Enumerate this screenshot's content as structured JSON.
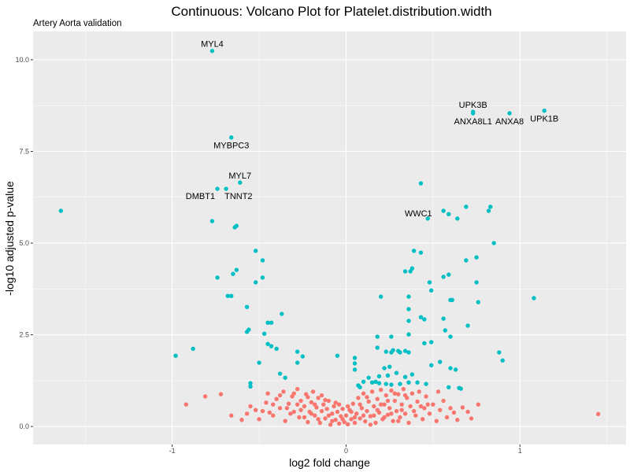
{
  "chart_data": {
    "type": "scatter",
    "title": "Continuous: Volcano Plot for Platelet.distribution.width",
    "subtitle": "Artery Aorta validation",
    "xlabel": "log2 fold change",
    "ylabel": "-log10 adjusted p-value",
    "xlim": [
      -1.8,
      1.61
    ],
    "ylim": [
      -0.49,
      10.77
    ],
    "x_ticks": [
      -1,
      0,
      1
    ],
    "x_tick_labels": [
      "-1",
      "0",
      "1"
    ],
    "y_ticks": [
      0,
      2.5,
      5,
      7.5,
      10
    ],
    "y_tick_labels": [
      "0.0",
      "2.5",
      "5.0",
      "7.5",
      "10.0"
    ],
    "grid": true,
    "colors": {
      "significant": "#00BFC4",
      "not_significant": "#F8766D",
      "panel": "#EBEBEB"
    },
    "labeled_points": [
      {
        "label": "MYL4",
        "x": -0.77,
        "y": 10.24,
        "label_pos": "above"
      },
      {
        "label": "MYBPC3",
        "x": -0.66,
        "y": 7.88,
        "label_pos": "below"
      },
      {
        "label": "MYL7",
        "x": -0.61,
        "y": 6.65,
        "label_pos": "above"
      },
      {
        "label": "DMBT1",
        "x": -0.74,
        "y": 6.48,
        "label_pos": "below-left"
      },
      {
        "label": "TNNT2",
        "x": -0.69,
        "y": 6.48,
        "label_pos": "below-right"
      },
      {
        "label": "UPK3B",
        "x": 0.73,
        "y": 8.58,
        "label_pos": "above"
      },
      {
        "label": "ANXA8L1",
        "x": 0.73,
        "y": 8.54,
        "label_pos": "below"
      },
      {
        "label": "ANXA8",
        "x": 0.94,
        "y": 8.54,
        "label_pos": "below"
      },
      {
        "label": "UPK1B",
        "x": 1.14,
        "y": 8.61,
        "label_pos": "below"
      },
      {
        "label": "WWC1",
        "x": 0.47,
        "y": 5.67,
        "label_pos": "left"
      }
    ],
    "significant_points": [
      [
        -1.64,
        5.88
      ],
      [
        -0.77,
        5.6
      ],
      [
        -0.63,
        5.47
      ],
      [
        -0.64,
        5.43
      ],
      [
        -0.52,
        4.79
      ],
      [
        -0.48,
        4.53
      ],
      [
        -0.63,
        4.27
      ],
      [
        -0.65,
        4.16
      ],
      [
        -0.74,
        4.06
      ],
      [
        -0.48,
        4.06
      ],
      [
        -0.52,
        3.93
      ],
      [
        -0.68,
        3.56
      ],
      [
        -0.66,
        3.56
      ],
      [
        -0.57,
        3.26
      ],
      [
        -0.37,
        3.07
      ],
      [
        -0.45,
        2.83
      ],
      [
        -0.43,
        2.83
      ],
      [
        -0.56,
        2.64
      ],
      [
        -0.57,
        2.58
      ],
      [
        -0.47,
        2.53
      ],
      [
        -0.45,
        2.25
      ],
      [
        -0.43,
        2.19
      ],
      [
        -0.4,
        2.12
      ],
      [
        -0.88,
        2.12
      ],
      [
        -0.98,
        1.93
      ],
      [
        -0.28,
        2.04
      ],
      [
        -0.25,
        1.91
      ],
      [
        -0.5,
        1.74
      ],
      [
        -0.28,
        1.74
      ],
      [
        -0.55,
        1.18
      ],
      [
        -0.55,
        1.09
      ],
      [
        -0.38,
        1.44
      ],
      [
        -0.35,
        1.33
      ],
      [
        -0.05,
        1.93
      ],
      [
        0.43,
        6.63
      ],
      [
        0.59,
        5.79
      ],
      [
        0.64,
        5.67
      ],
      [
        0.56,
        5.88
      ],
      [
        0.69,
        5.99
      ],
      [
        0.83,
        5.99
      ],
      [
        0.82,
        5.88
      ],
      [
        0.85,
        5.0
      ],
      [
        0.39,
        4.79
      ],
      [
        0.43,
        4.74
      ],
      [
        0.75,
        4.61
      ],
      [
        0.69,
        4.53
      ],
      [
        0.34,
        4.23
      ],
      [
        0.37,
        4.23
      ],
      [
        0.38,
        4.31
      ],
      [
        0.48,
        3.93
      ],
      [
        0.59,
        4.14
      ],
      [
        0.56,
        4.08
      ],
      [
        0.75,
        3.93
      ],
      [
        0.49,
        3.71
      ],
      [
        1.08,
        3.5
      ],
      [
        0.36,
        3.54
      ],
      [
        0.2,
        3.54
      ],
      [
        0.61,
        3.45
      ],
      [
        0.6,
        3.45
      ],
      [
        0.76,
        3.39
      ],
      [
        0.36,
        3.2
      ],
      [
        0.36,
        2.88
      ],
      [
        0.43,
        2.98
      ],
      [
        0.45,
        2.92
      ],
      [
        0.56,
        2.94
      ],
      [
        0.7,
        2.75
      ],
      [
        0.18,
        2.45
      ],
      [
        0.26,
        2.45
      ],
      [
        0.36,
        2.51
      ],
      [
        0.45,
        2.27
      ],
      [
        0.49,
        2.3
      ],
      [
        0.57,
        2.62
      ],
      [
        0.6,
        2.45
      ],
      [
        0.3,
        2.06
      ],
      [
        0.31,
        2.02
      ],
      [
        0.27,
        2.08
      ],
      [
        0.34,
        2.06
      ],
      [
        0.23,
        2.04
      ],
      [
        0.26,
        2.02
      ],
      [
        0.36,
        2.02
      ],
      [
        0.18,
        2.15
      ],
      [
        0.88,
        2.02
      ],
      [
        0.9,
        1.8
      ],
      [
        0.49,
        1.67
      ],
      [
        0.54,
        1.76
      ],
      [
        0.6,
        1.59
      ],
      [
        0.63,
        1.55
      ],
      [
        0.22,
        1.59
      ],
      [
        0.25,
        1.63
      ],
      [
        0.19,
        1.37
      ],
      [
        0.24,
        1.39
      ],
      [
        0.29,
        1.46
      ],
      [
        0.34,
        1.35
      ],
      [
        0.38,
        1.42
      ],
      [
        0.05,
        1.87
      ],
      [
        0.05,
        1.72
      ],
      [
        0.05,
        1.55
      ],
      [
        0.17,
        1.22
      ],
      [
        0.19,
        1.18
      ],
      [
        0.23,
        1.16
      ],
      [
        0.26,
        1.14
      ],
      [
        0.31,
        1.16
      ],
      [
        0.36,
        1.2
      ],
      [
        0.41,
        1.2
      ],
      [
        0.46,
        1.16
      ],
      [
        0.59,
        1.07
      ],
      [
        0.65,
        1.05
      ],
      [
        0.66,
        1.03
      ],
      [
        0.13,
        1.33
      ],
      [
        0.15,
        1.2
      ],
      [
        0.1,
        1.22
      ],
      [
        0.07,
        1.12
      ],
      [
        0.08,
        1.07
      ]
    ],
    "nonsignificant_points": [
      [
        -0.92,
        0.6
      ],
      [
        -0.81,
        0.82
      ],
      [
        -0.72,
        0.88
      ],
      [
        1.45,
        0.34
      ],
      [
        0.76,
        0.6
      ],
      [
        0.67,
        0.52
      ],
      [
        -0.57,
        0.35
      ],
      [
        -0.55,
        0.55
      ],
      [
        -0.5,
        0.2
      ],
      [
        -0.48,
        0.42
      ],
      [
        -0.46,
        0.65
      ],
      [
        -0.45,
        0.9
      ],
      [
        -0.42,
        0.3
      ],
      [
        -0.4,
        0.75
      ],
      [
        -0.38,
        0.5
      ],
      [
        -0.36,
        0.95
      ],
      [
        -0.35,
        0.15
      ],
      [
        -0.33,
        0.62
      ],
      [
        -0.31,
        0.82
      ],
      [
        -0.3,
        0.4
      ],
      [
        -0.28,
        1.02
      ],
      [
        -0.27,
        0.25
      ],
      [
        -0.26,
        0.7
      ],
      [
        -0.24,
        0.55
      ],
      [
        -0.23,
        0.88
      ],
      [
        -0.22,
        0.12
      ],
      [
        -0.21,
        0.4
      ],
      [
        -0.2,
        0.66
      ],
      [
        -0.19,
        0.95
      ],
      [
        -0.18,
        0.3
      ],
      [
        -0.17,
        0.52
      ],
      [
        -0.16,
        0.78
      ],
      [
        -0.15,
        0.1
      ],
      [
        -0.14,
        0.42
      ],
      [
        -0.13,
        0.6
      ],
      [
        -0.12,
        0.22
      ],
      [
        -0.11,
        0.48
      ],
      [
        -0.1,
        0.7
      ],
      [
        -0.09,
        0.05
      ],
      [
        -0.08,
        0.35
      ],
      [
        -0.07,
        0.55
      ],
      [
        -0.06,
        0.18
      ],
      [
        -0.05,
        0.4
      ],
      [
        -0.04,
        0.08
      ],
      [
        -0.03,
        0.28
      ],
      [
        -0.02,
        0.48
      ],
      [
        -0.01,
        0.12
      ],
      [
        0.0,
        0.3
      ],
      [
        0.01,
        0.06
      ],
      [
        0.02,
        0.45
      ],
      [
        0.03,
        0.2
      ],
      [
        0.04,
        0.62
      ],
      [
        0.05,
        0.1
      ],
      [
        0.06,
        0.35
      ],
      [
        0.07,
        0.78
      ],
      [
        0.08,
        0.22
      ],
      [
        0.09,
        0.5
      ],
      [
        0.1,
        0.9
      ],
      [
        0.11,
        0.14
      ],
      [
        0.12,
        0.42
      ],
      [
        0.13,
        0.68
      ],
      [
        0.14,
        0.28
      ],
      [
        0.15,
        0.95
      ],
      [
        0.16,
        0.55
      ],
      [
        0.17,
        0.1
      ],
      [
        0.18,
        0.75
      ],
      [
        0.19,
        0.38
      ],
      [
        0.2,
        1.0
      ],
      [
        0.21,
        0.2
      ],
      [
        0.22,
        0.6
      ],
      [
        0.23,
        0.85
      ],
      [
        0.24,
        0.32
      ],
      [
        0.25,
        0.5
      ],
      [
        0.26,
        0.98
      ],
      [
        0.27,
        0.15
      ],
      [
        0.28,
        0.7
      ],
      [
        0.29,
        0.42
      ],
      [
        0.3,
        0.88
      ],
      [
        0.31,
        0.25
      ],
      [
        0.32,
        0.6
      ],
      [
        0.33,
        1.02
      ],
      [
        0.34,
        0.35
      ],
      [
        0.35,
        0.78
      ],
      [
        0.36,
        0.1
      ],
      [
        0.37,
        0.55
      ],
      [
        0.38,
        0.9
      ],
      [
        0.4,
        0.3
      ],
      [
        0.41,
        0.68
      ],
      [
        0.42,
        0.95
      ],
      [
        0.44,
        0.2
      ],
      [
        0.45,
        0.5
      ],
      [
        0.46,
        0.82
      ],
      [
        0.48,
        0.35
      ],
      [
        0.5,
        0.6
      ],
      [
        0.52,
        0.15
      ],
      [
        0.54,
        0.45
      ],
      [
        0.56,
        0.7
      ],
      [
        0.58,
        0.25
      ],
      [
        0.6,
        0.5
      ],
      [
        0.62,
        0.38
      ],
      [
        0.64,
        0.18
      ],
      [
        -0.04,
        0.6
      ],
      [
        -0.02,
        0.2
      ],
      [
        0.01,
        0.55
      ],
      [
        0.03,
        0.4
      ],
      [
        0.05,
        0.25
      ],
      [
        -0.06,
        0.65
      ],
      [
        -0.08,
        0.15
      ],
      [
        0.08,
        0.6
      ],
      [
        0.1,
        0.3
      ],
      [
        -0.1,
        0.3
      ],
      [
        -0.12,
        0.72
      ],
      [
        0.12,
        0.8
      ],
      [
        0.14,
        0.05
      ],
      [
        -0.14,
        0.85
      ],
      [
        -0.16,
        0.2
      ],
      [
        0.16,
        0.3
      ],
      [
        -0.18,
        0.6
      ],
      [
        0.18,
        0.45
      ],
      [
        -0.2,
        0.35
      ],
      [
        0.2,
        0.6
      ],
      [
        -0.22,
        0.8
      ],
      [
        0.22,
        0.25
      ],
      [
        -0.24,
        0.25
      ],
      [
        0.24,
        0.7
      ],
      [
        -0.26,
        0.45
      ],
      [
        0.26,
        0.35
      ],
      [
        -0.28,
        0.6
      ],
      [
        0.28,
        0.9
      ],
      [
        -0.3,
        0.9
      ],
      [
        0.3,
        0.15
      ],
      [
        -0.32,
        0.35
      ],
      [
        0.32,
        0.45
      ],
      [
        -0.34,
        0.5
      ],
      [
        0.34,
        0.85
      ],
      [
        -0.38,
        0.85
      ],
      [
        0.39,
        0.42
      ],
      [
        -0.42,
        0.6
      ],
      [
        0.43,
        0.55
      ],
      [
        -0.44,
        0.38
      ],
      [
        0.47,
        0.6
      ],
      [
        -0.52,
        0.45
      ],
      [
        0.53,
        0.95
      ],
      [
        -0.6,
        0.18
      ],
      [
        0.7,
        0.4
      ],
      [
        -0.66,
        0.3
      ],
      [
        0.72,
        0.22
      ]
    ]
  }
}
